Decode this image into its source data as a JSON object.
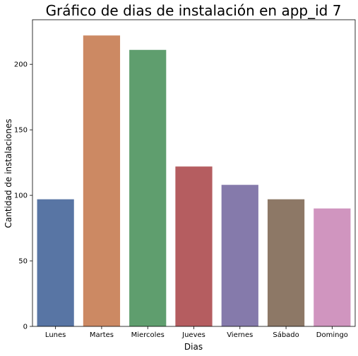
{
  "chart_data": {
    "type": "bar",
    "title": "Gráfico de dias de instalación en app_id 7",
    "xlabel": "Dias",
    "ylabel": "Cantidad de instalaciones",
    "categories": [
      "Lunes",
      "Martes",
      "Miercoles",
      "Jueves",
      "Viernes",
      "Sábado",
      "Domingo"
    ],
    "values": [
      97,
      222,
      211,
      122,
      108,
      97,
      90
    ],
    "colors": [
      "#5875a4",
      "#cc8963",
      "#5f9e6e",
      "#b55d60",
      "#857aab",
      "#8d7866",
      "#d095bf"
    ],
    "ylim": [
      0,
      234
    ],
    "yticks": [
      0,
      50,
      100,
      150,
      200
    ],
    "grid": false,
    "legend": "none"
  }
}
